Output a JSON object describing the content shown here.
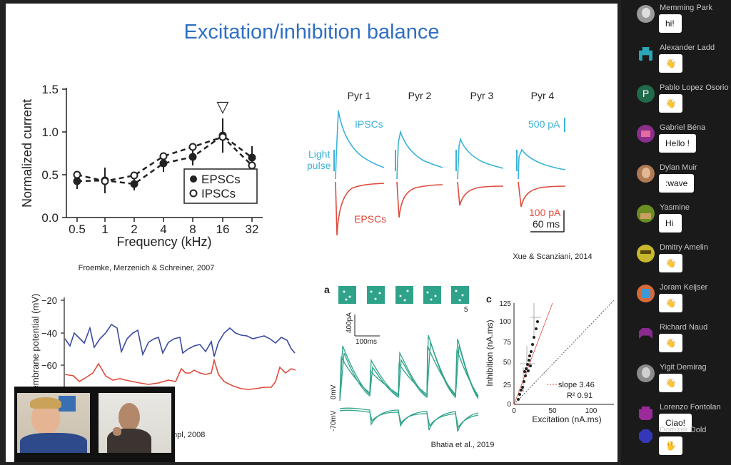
{
  "slide": {
    "title": "Excitation/inhibition balance",
    "panel_top_left": {
      "ylabel": "Normalized current",
      "xlabel": "Frequency (kHz)",
      "yticks": [
        "0.0",
        "0.5",
        "1.0",
        "1.5"
      ],
      "xticks": [
        "0.5",
        "1",
        "2",
        "4",
        "8",
        "16",
        "32"
      ],
      "legend": [
        "EPSCs",
        "IPSCs"
      ],
      "marker": "▽",
      "citation": "Froemke, Merzenich & Schreiner, 2007"
    },
    "panel_top_right": {
      "cells": [
        "Pyr 1",
        "Pyr 2",
        "Pyr 3",
        "Pyr 4"
      ],
      "ipsc_label": "IPSCs",
      "epsc_label": "EPSCs",
      "light_label_1": "Light",
      "light_label_2": "pulse",
      "scale_blue": "500 pA",
      "scale_red": "100 pA",
      "scale_time": "60 ms",
      "citation": "Xue & Scanziani, 2014"
    },
    "panel_bottom_left": {
      "ylabel": "Membrane potential (mV)",
      "yticks": [
        "−20",
        "−40",
        "−60"
      ],
      "citation": "mpl, 2008"
    },
    "panel_bottom_mid": {
      "letter": "a",
      "pattern_count": "5",
      "scale_current": "400pA",
      "scale_time": "100ms",
      "v_labels": [
        "0mV",
        "-70mV"
      ],
      "citation": "Bhatia et al., 2019"
    },
    "panel_bottom_right": {
      "letter": "c",
      "ylabel": "Inhibition (nA.ms)",
      "xlabel": "Excitation (nA.ms)",
      "yticks": [
        "0",
        "25",
        "50",
        "75",
        "100",
        "125"
      ],
      "xticks": [
        "0",
        "50",
        "100"
      ],
      "slope_label": "slope 3.46",
      "r2_label": "R² 0.91"
    }
  },
  "chat": [
    {
      "name": "Memming Park",
      "message": "hi!",
      "avatar_color": "#9a9a9a",
      "avatar_icon": "photo-avatar"
    },
    {
      "name": "Alexander Ladd",
      "message": "👋",
      "avatar_color": "#2aa6b8",
      "avatar_icon": "pixel-avatar"
    },
    {
      "name": "Pablo Lopez Osorio",
      "message": "👋",
      "avatar_color": "#1f6b4a",
      "avatar_icon": "letter-avatar",
      "avatar_letter": "P"
    },
    {
      "name": "Gabriel Béna",
      "message": "Hello !",
      "avatar_color": "#8b2e8c",
      "avatar_icon": "pixel-avatar"
    },
    {
      "name": "Dylan Muir",
      "message": ":wave",
      "avatar_color": "#b07a52",
      "avatar_icon": "photo-avatar"
    },
    {
      "name": "Yasmine",
      "message": "Hi",
      "avatar_color": "#6b8e23",
      "avatar_icon": "pixel-avatar"
    },
    {
      "name": "Dmitry Amelin",
      "message": "👋",
      "avatar_color": "#c7b82e",
      "avatar_icon": "pixel-avatar"
    },
    {
      "name": "Joram Keijser",
      "message": "👋",
      "avatar_color": "#d86a3a",
      "avatar_icon": "pixel-avatar"
    },
    {
      "name": "Richard Naud",
      "message": "👋",
      "avatar_color": "#8a2a8f",
      "avatar_icon": "pixel-avatar"
    },
    {
      "name": "Yigit Demirag",
      "message": "👋",
      "avatar_color": "#8c8c8c",
      "avatar_icon": "photo-avatar"
    },
    {
      "name": "Lorenzo Fontolan",
      "message": "Ciao!",
      "avatar_color": "#9b2a9b",
      "avatar_icon": "pixel-avatar"
    },
    {
      "name": "Dominik Dold",
      "message": "🖖",
      "avatar_color": "#3438b8",
      "avatar_icon": "pixel-avatar"
    }
  ]
}
